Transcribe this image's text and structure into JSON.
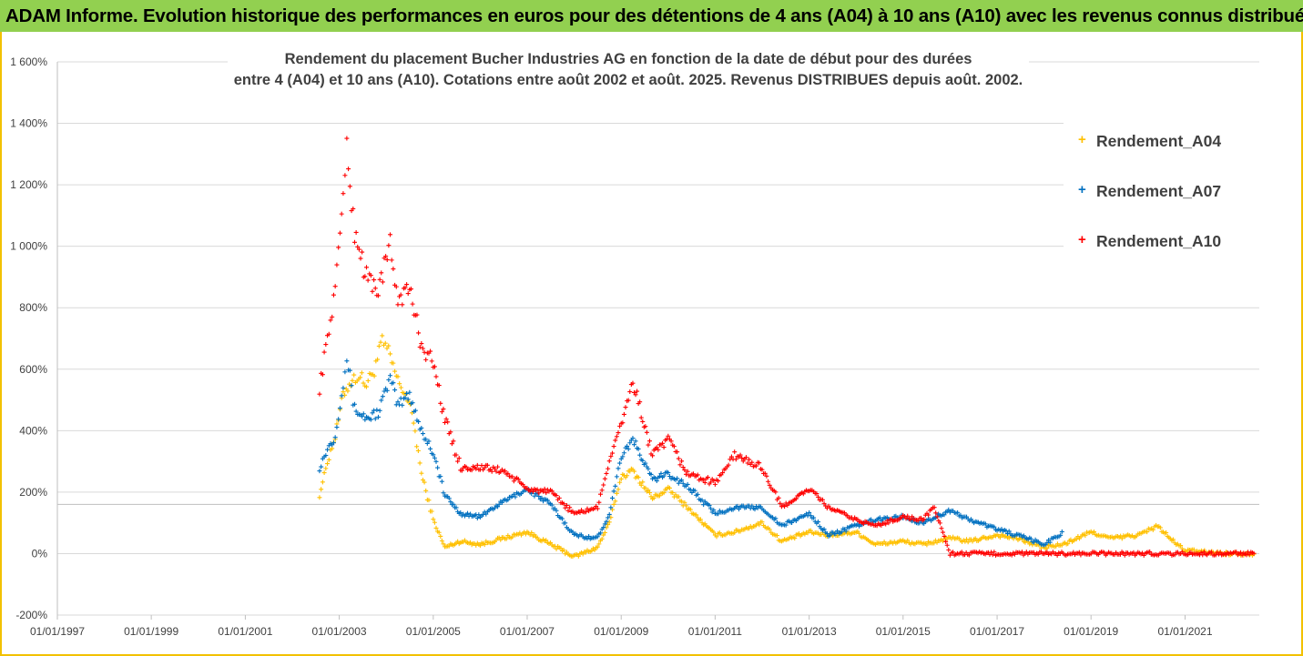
{
  "banner": {
    "title": "ADAM Informe. Evolution historique des performances en euros pour des détentions de 4 ans (A04) à 10 ans (A10) avec les revenus connus distribués"
  },
  "chart_data": {
    "type": "scatter",
    "title_line1": "Rendement du placement Bucher Industries AG en fonction de la date de début pour des durées",
    "title_line2": "entre 4 (A04) et 10 ans (A10). Cotations entre août 2002 et août. 2025. Revenus DISTRIBUES depuis août. 2002.",
    "xlabel": "",
    "ylabel": "",
    "x_ticks": [
      "01/01/1997",
      "01/01/1999",
      "01/01/2001",
      "01/01/2003",
      "01/01/2005",
      "01/01/2007",
      "01/01/2009",
      "01/01/2011",
      "01/01/2013",
      "01/01/2015",
      "01/01/2017",
      "01/01/2019",
      "01/01/2021"
    ],
    "y_ticks": [
      "-200%",
      "0%",
      "200%",
      "400%",
      "600%",
      "800%",
      "1 000%",
      "1 200%",
      "1 400%",
      "1 600%"
    ],
    "ylim": [
      -200,
      1600
    ],
    "xlim": [
      "1997-01-01",
      "2022-08-01"
    ],
    "grid": "horizontal",
    "legend_position": "right",
    "reference_line_value": 160,
    "series": [
      {
        "name": "Rendement_A04",
        "color": "#ffc000",
        "marker": "+",
        "points": [
          [
            "2002-08-01",
            190
          ],
          [
            "2002-10-01",
            300
          ],
          [
            "2002-12-01",
            380
          ],
          [
            "2003-02-01",
            520
          ],
          [
            "2003-04-01",
            560
          ],
          [
            "2003-06-01",
            580
          ],
          [
            "2003-08-01",
            550
          ],
          [
            "2003-10-01",
            600
          ],
          [
            "2003-12-01",
            690
          ],
          [
            "2004-02-01",
            640
          ],
          [
            "2004-04-01",
            560
          ],
          [
            "2004-06-01",
            520
          ],
          [
            "2004-08-01",
            430
          ],
          [
            "2004-10-01",
            260
          ],
          [
            "2005-01-01",
            110
          ],
          [
            "2005-04-01",
            20
          ],
          [
            "2005-08-01",
            40
          ],
          [
            "2006-01-01",
            30
          ],
          [
            "2006-07-01",
            50
          ],
          [
            "2007-01-01",
            70
          ],
          [
            "2007-07-01",
            30
          ],
          [
            "2008-01-01",
            -10
          ],
          [
            "2008-07-01",
            20
          ],
          [
            "2008-10-01",
            100
          ],
          [
            "2009-01-01",
            250
          ],
          [
            "2009-04-01",
            270
          ],
          [
            "2009-09-01",
            180
          ],
          [
            "2010-01-01",
            210
          ],
          [
            "2010-06-01",
            150
          ],
          [
            "2011-01-01",
            60
          ],
          [
            "2011-06-01",
            70
          ],
          [
            "2012-01-01",
            100
          ],
          [
            "2012-06-01",
            40
          ],
          [
            "2013-01-01",
            70
          ],
          [
            "2013-06-01",
            60
          ],
          [
            "2014-01-01",
            70
          ],
          [
            "2014-06-01",
            30
          ],
          [
            "2015-01-01",
            40
          ],
          [
            "2015-06-01",
            30
          ],
          [
            "2016-01-01",
            50
          ],
          [
            "2016-06-01",
            40
          ],
          [
            "2017-01-01",
            60
          ],
          [
            "2017-06-01",
            50
          ],
          [
            "2018-01-01",
            20
          ],
          [
            "2018-06-01",
            30
          ],
          [
            "2019-01-01",
            70
          ],
          [
            "2019-06-01",
            50
          ],
          [
            "2020-01-01",
            60
          ],
          [
            "2020-06-01",
            90
          ],
          [
            "2020-10-01",
            40
          ],
          [
            "2021-01-01",
            10
          ],
          [
            "2021-06-01",
            5
          ],
          [
            "2022-01-01",
            0
          ],
          [
            "2022-07-01",
            0
          ]
        ]
      },
      {
        "name": "Rendement_A07",
        "color": "#0070c0",
        "marker": "+",
        "points": [
          [
            "2002-08-01",
            280
          ],
          [
            "2002-10-01",
            340
          ],
          [
            "2002-12-01",
            380
          ],
          [
            "2003-02-01",
            560
          ],
          [
            "2003-03-01",
            640
          ],
          [
            "2003-05-01",
            470
          ],
          [
            "2003-08-01",
            440
          ],
          [
            "2003-11-01",
            460
          ],
          [
            "2004-02-01",
            570
          ],
          [
            "2004-04-01",
            480
          ],
          [
            "2004-07-01",
            520
          ],
          [
            "2004-10-01",
            400
          ],
          [
            "2005-01-01",
            330
          ],
          [
            "2005-04-01",
            190
          ],
          [
            "2005-08-01",
            130
          ],
          [
            "2006-01-01",
            120
          ],
          [
            "2006-07-01",
            170
          ],
          [
            "2007-01-01",
            210
          ],
          [
            "2007-07-01",
            160
          ],
          [
            "2008-01-01",
            60
          ],
          [
            "2008-07-01",
            50
          ],
          [
            "2008-10-01",
            130
          ],
          [
            "2009-01-01",
            320
          ],
          [
            "2009-04-01",
            370
          ],
          [
            "2009-09-01",
            240
          ],
          [
            "2010-01-01",
            260
          ],
          [
            "2010-06-01",
            220
          ],
          [
            "2011-01-01",
            130
          ],
          [
            "2011-06-01",
            150
          ],
          [
            "2012-01-01",
            150
          ],
          [
            "2012-06-01",
            90
          ],
          [
            "2013-01-01",
            130
          ],
          [
            "2013-06-01",
            60
          ],
          [
            "2014-01-01",
            90
          ],
          [
            "2014-06-01",
            110
          ],
          [
            "2015-01-01",
            120
          ],
          [
            "2015-06-01",
            100
          ],
          [
            "2016-01-01",
            140
          ],
          [
            "2016-06-01",
            110
          ],
          [
            "2017-01-01",
            80
          ],
          [
            "2017-06-01",
            60
          ],
          [
            "2018-01-01",
            30
          ],
          [
            "2018-06-01",
            70
          ]
        ]
      },
      {
        "name": "Rendement_A10",
        "color": "#ff0000",
        "marker": "+",
        "points": [
          [
            "2002-08-01",
            540
          ],
          [
            "2002-10-01",
            700
          ],
          [
            "2002-12-01",
            860
          ],
          [
            "2003-02-01",
            1180
          ],
          [
            "2003-03-01",
            1300
          ],
          [
            "2003-05-01",
            1050
          ],
          [
            "2003-08-01",
            900
          ],
          [
            "2003-11-01",
            860
          ],
          [
            "2004-02-01",
            1000
          ],
          [
            "2004-04-01",
            830
          ],
          [
            "2004-07-01",
            860
          ],
          [
            "2004-10-01",
            680
          ],
          [
            "2005-01-01",
            620
          ],
          [
            "2005-04-01",
            440
          ],
          [
            "2005-08-01",
            280
          ],
          [
            "2006-01-01",
            280
          ],
          [
            "2006-07-01",
            270
          ],
          [
            "2007-01-01",
            210
          ],
          [
            "2007-07-01",
            200
          ],
          [
            "2008-01-01",
            130
          ],
          [
            "2008-07-01",
            150
          ],
          [
            "2008-10-01",
            300
          ],
          [
            "2009-01-01",
            420
          ],
          [
            "2009-04-01",
            560
          ],
          [
            "2009-09-01",
            320
          ],
          [
            "2010-01-01",
            370
          ],
          [
            "2010-06-01",
            260
          ],
          [
            "2011-01-01",
            230
          ],
          [
            "2011-06-01",
            320
          ],
          [
            "2012-01-01",
            280
          ],
          [
            "2012-06-01",
            150
          ],
          [
            "2013-01-01",
            210
          ],
          [
            "2013-06-01",
            150
          ],
          [
            "2014-01-01",
            110
          ],
          [
            "2014-06-01",
            90
          ],
          [
            "2015-01-01",
            120
          ],
          [
            "2015-06-01",
            110
          ],
          [
            "2015-09-01",
            150
          ],
          [
            "2016-01-01",
            0
          ],
          [
            "2017-01-01",
            0
          ],
          [
            "2018-01-01",
            0
          ],
          [
            "2019-01-01",
            0
          ],
          [
            "2020-01-01",
            0
          ],
          [
            "2021-01-01",
            0
          ],
          [
            "2022-07-01",
            0
          ]
        ]
      }
    ]
  }
}
